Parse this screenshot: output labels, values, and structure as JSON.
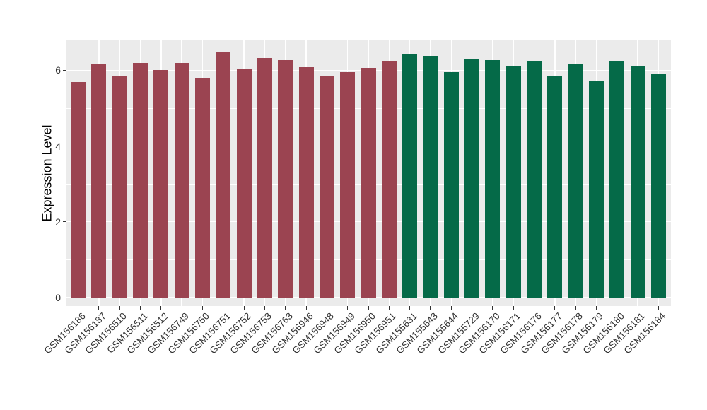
{
  "chart_data": {
    "type": "bar",
    "title": "",
    "xlabel": "",
    "ylabel": "Expression Level",
    "ylim": [
      0,
      6.8
    ],
    "yticks": [
      0,
      2,
      4,
      6
    ],
    "minor_yticks": [
      1,
      3,
      5
    ],
    "grid": true,
    "legend": false,
    "panel_background": "#EBEBEB",
    "gridline_color": "#FFFFFF",
    "axis_text_color": "#333333",
    "group_colors": {
      "group1": "#9B4451",
      "group2": "#056A48"
    },
    "categories": [
      "GSM156186",
      "GSM156187",
      "GSM156510",
      "GSM156511",
      "GSM156512",
      "GSM156749",
      "GSM156750",
      "GSM156751",
      "GSM156752",
      "GSM156753",
      "GSM156763",
      "GSM156946",
      "GSM156948",
      "GSM156949",
      "GSM156950",
      "GSM156951",
      "GSM155631",
      "GSM155643",
      "GSM155644",
      "GSM155729",
      "GSM156170",
      "GSM156171",
      "GSM156176",
      "GSM156177",
      "GSM156178",
      "GSM156179",
      "GSM156180",
      "GSM156181",
      "GSM156184"
    ],
    "values": [
      5.68,
      6.17,
      5.85,
      6.19,
      6.0,
      6.19,
      5.78,
      6.47,
      6.04,
      6.33,
      6.27,
      6.08,
      5.86,
      5.95,
      6.06,
      6.24,
      6.42,
      6.38,
      5.94,
      6.29,
      6.27,
      6.11,
      6.25,
      5.85,
      6.18,
      5.73,
      6.23,
      6.11,
      5.91
    ],
    "groups": [
      "group1",
      "group1",
      "group1",
      "group1",
      "group1",
      "group1",
      "group1",
      "group1",
      "group1",
      "group1",
      "group1",
      "group1",
      "group1",
      "group1",
      "group1",
      "group1",
      "group2",
      "group2",
      "group2",
      "group2",
      "group2",
      "group2",
      "group2",
      "group2",
      "group2",
      "group2",
      "group2",
      "group2",
      "group2"
    ]
  }
}
